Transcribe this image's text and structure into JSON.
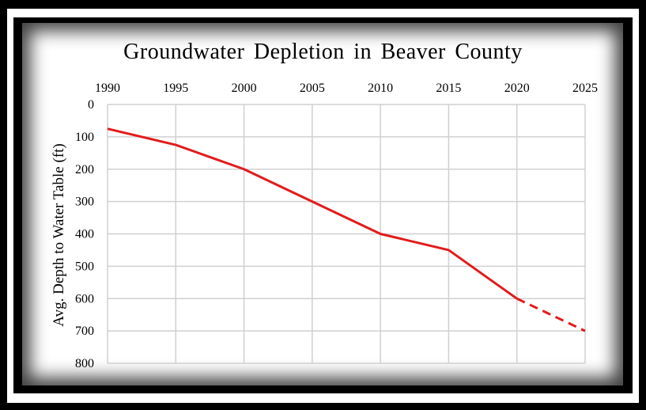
{
  "chart_data": {
    "type": "line",
    "title": "Groundwater Depletion in Beaver County",
    "xlabel": "",
    "ylabel": "Avg. Depth to Water Table (ft)",
    "x_ticks": [
      "1990",
      "1995",
      "2000",
      "2005",
      "2010",
      "2015",
      "2020",
      "2025"
    ],
    "y_ticks": [
      "0",
      "100",
      "200",
      "300",
      "400",
      "500",
      "600",
      "700",
      "800"
    ],
    "xlim": [
      1990,
      2025
    ],
    "ylim": [
      0,
      800
    ],
    "y_inverted": true,
    "x_axis_position": "top",
    "grid": true,
    "line_color": "#e31b1b",
    "series": [
      {
        "style": "solid",
        "points": [
          {
            "x": 1990,
            "y": 75
          },
          {
            "x": 1995,
            "y": 125
          },
          {
            "x": 2000,
            "y": 200
          },
          {
            "x": 2005,
            "y": 300
          },
          {
            "x": 2010,
            "y": 400
          },
          {
            "x": 2015,
            "y": 450
          },
          {
            "x": 2020,
            "y": 600
          }
        ]
      },
      {
        "style": "dashed",
        "points": [
          {
            "x": 2020,
            "y": 600
          },
          {
            "x": 2025,
            "y": 700
          }
        ]
      }
    ]
  }
}
